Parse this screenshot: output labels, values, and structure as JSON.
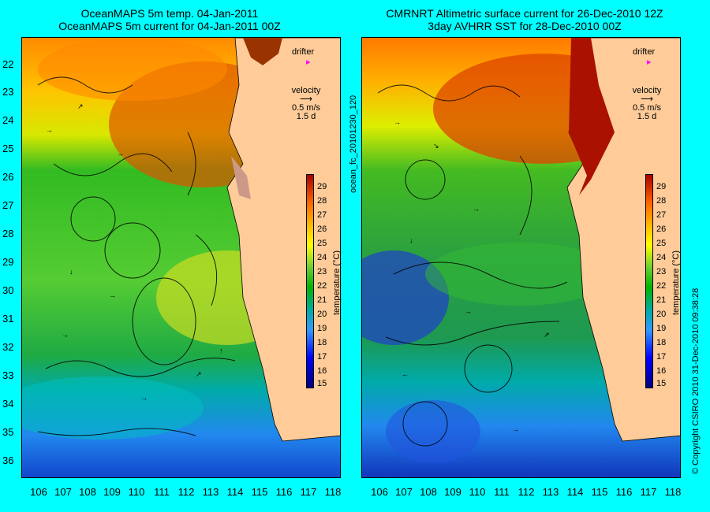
{
  "titles": {
    "left": [
      "OceanMAPS 5m temp. 04-Jan-2011",
      "OceanMAPS 5m current for 04-Jan-2011 00Z"
    ],
    "right": [
      "CMRNRT Altimetric surface current for 26-Dec-2010 12Z",
      "3day AVHRR SST for 28-Dec-2010 00Z"
    ]
  },
  "latitudes": [
    "22",
    "23",
    "24",
    "25",
    "26",
    "27",
    "28",
    "29",
    "30",
    "31",
    "32",
    "33",
    "34",
    "35",
    "36"
  ],
  "longitudes": [
    "106",
    "107",
    "108",
    "109",
    "110",
    "111",
    "112",
    "113",
    "114",
    "115",
    "116",
    "117",
    "118"
  ],
  "legend": {
    "drifter": "drifter",
    "velocity": "velocity",
    "speed": "0.5 m/s",
    "duration": "1.5 d",
    "drifter_color": "#ff00ff"
  },
  "colorbar": {
    "ticks": [
      "29",
      "28",
      "27",
      "26",
      "25",
      "24",
      "23",
      "22",
      "21",
      "20",
      "19",
      "18",
      "17",
      "16",
      "15"
    ],
    "unit": "temperature (°C)"
  },
  "side_code": "ocean_fc_20101230_120",
  "copyright": "© Copyright CSIRO 2010   31-Dec-2010 09:38:28",
  "colors": {
    "background": "#00ffff",
    "land": "#ffcc99",
    "warm": "#cc3300",
    "cool": "#0033cc"
  }
}
